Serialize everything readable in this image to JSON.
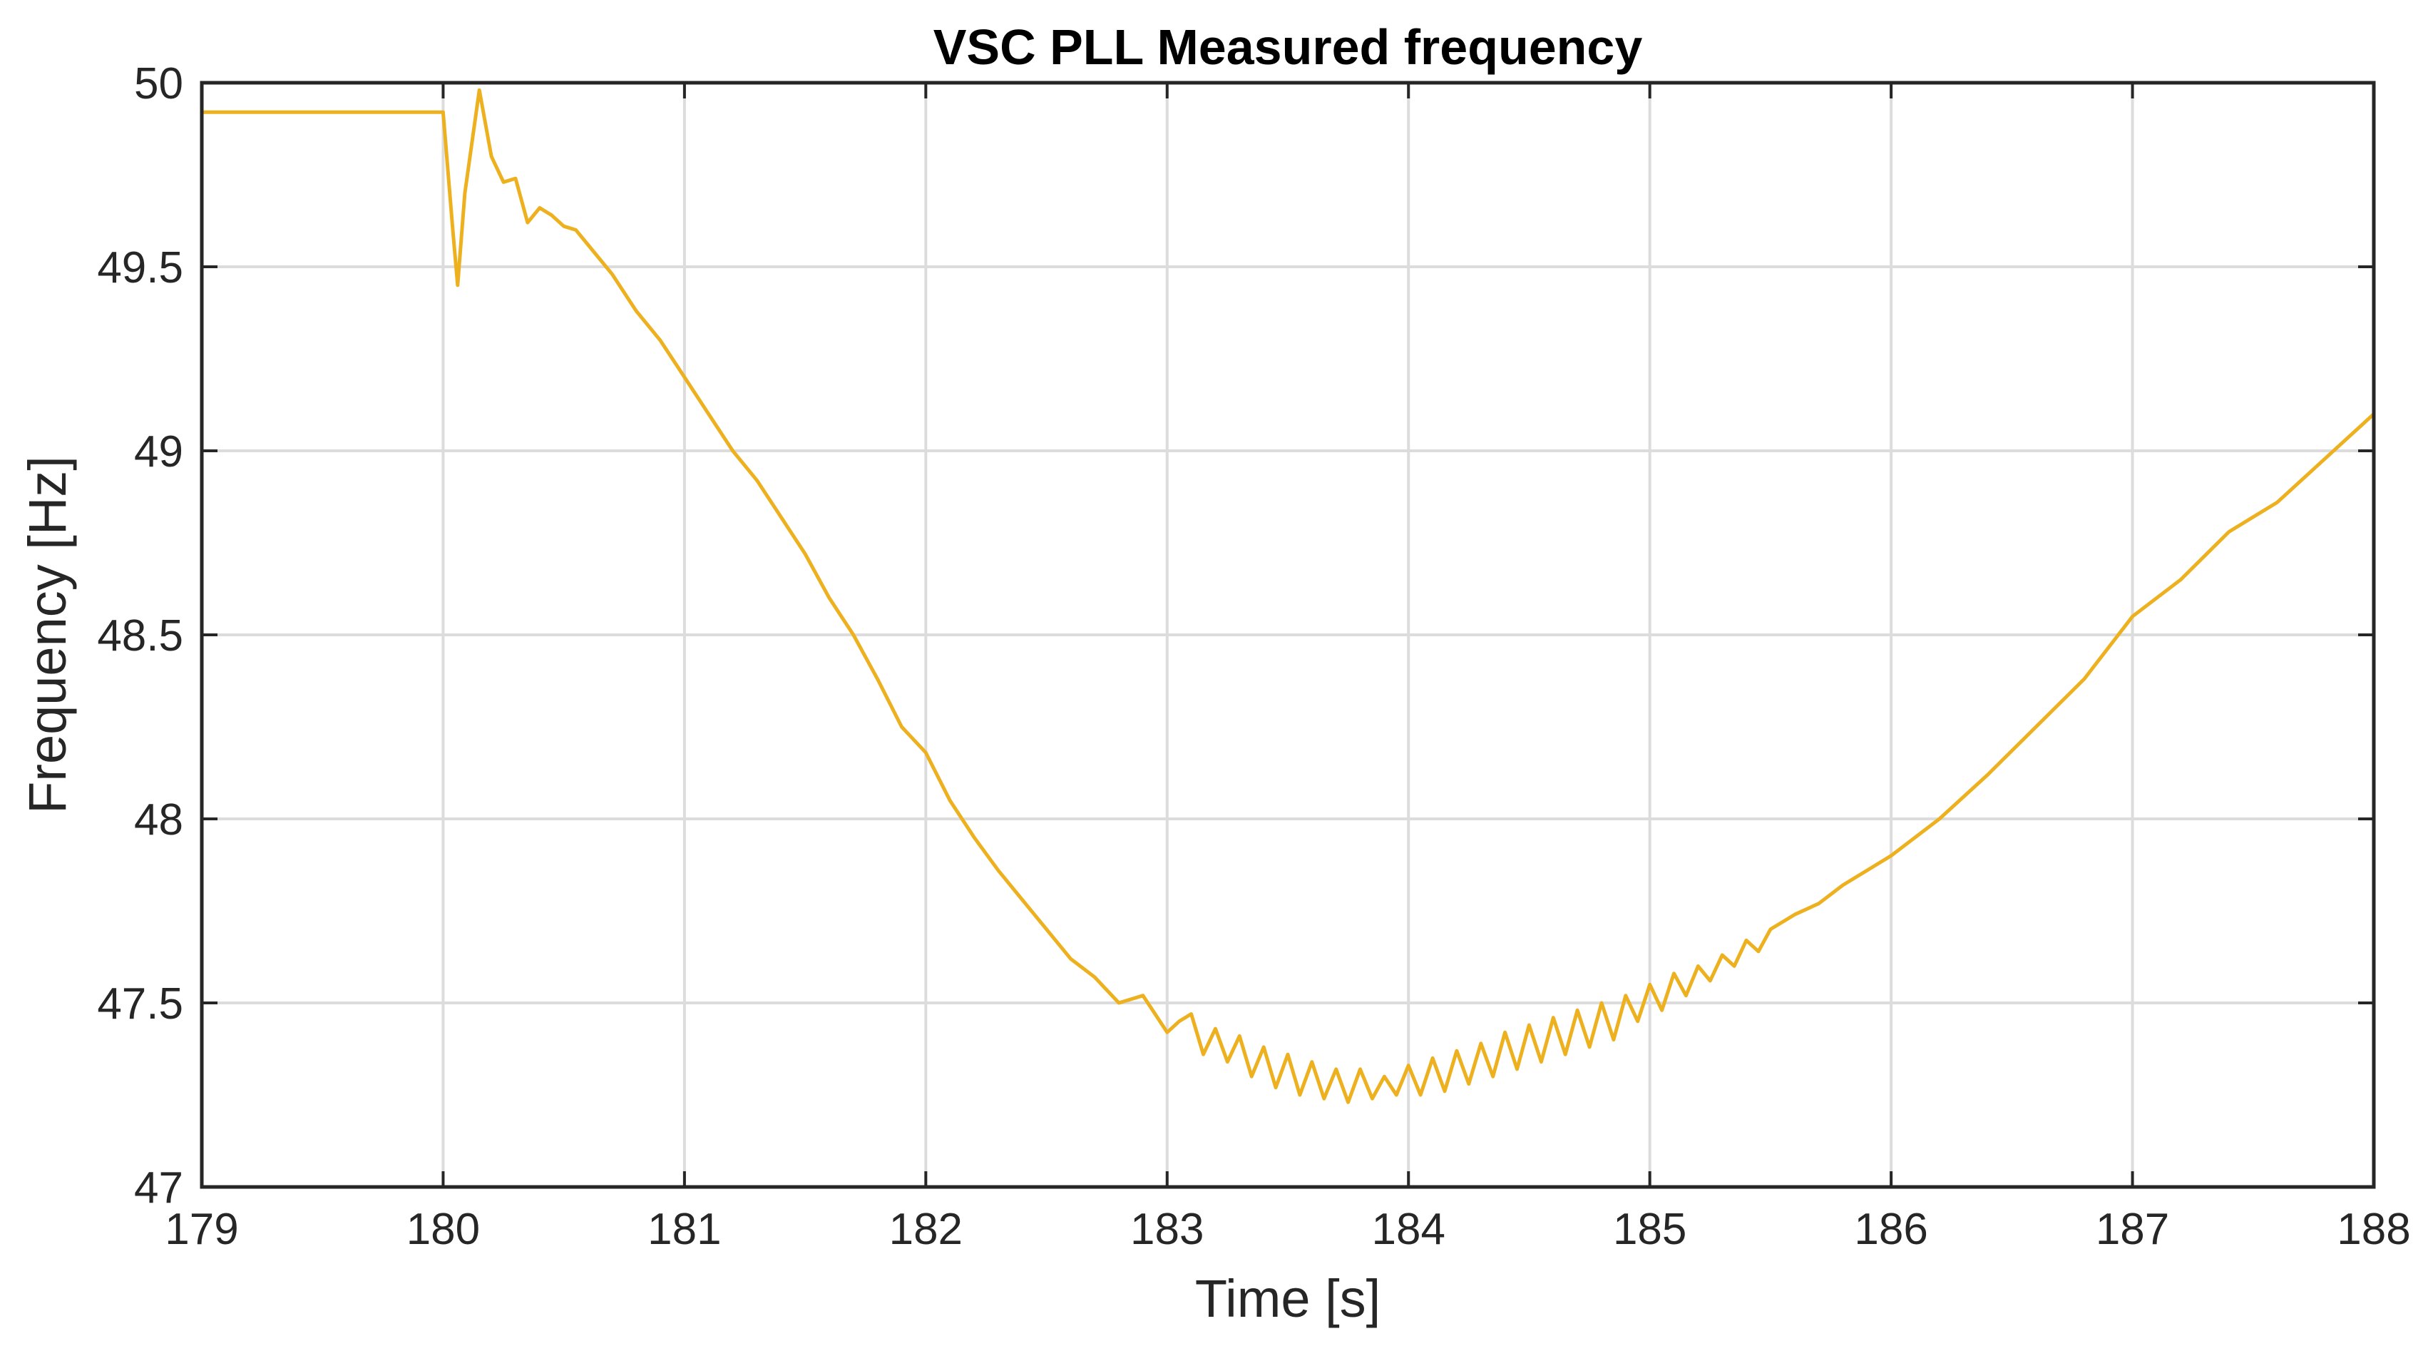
{
  "colors": {
    "series": "#EDB120",
    "grid": "#DCDCDC",
    "axis": "#262626"
  },
  "chart_data": {
    "type": "line",
    "title": "VSC PLL Measured frequency",
    "xlabel": "Time [s]",
    "ylabel": "Frequency [Hz]",
    "xlim": [
      179,
      188
    ],
    "ylim": [
      47,
      50
    ],
    "grid": true,
    "x_ticks": [
      179,
      180,
      181,
      182,
      183,
      184,
      185,
      186,
      187,
      188
    ],
    "x_tick_labels": [
      "179",
      "180",
      "181",
      "182",
      "183",
      "184",
      "185",
      "186",
      "187",
      "188"
    ],
    "y_ticks": [
      47,
      47.5,
      48,
      48.5,
      49,
      49.5,
      50
    ],
    "y_tick_labels": [
      "47",
      "47.5",
      "48",
      "48.5",
      "49",
      "49.5",
      "50"
    ],
    "series": [
      {
        "x": [
          179.0,
          180.0,
          180.04,
          180.06,
          180.09,
          180.15,
          180.2,
          180.25,
          180.3,
          180.35,
          180.4,
          180.45,
          180.5,
          180.55,
          180.6,
          180.7,
          180.8,
          180.9,
          181.0,
          181.1,
          181.2,
          181.3,
          181.4,
          181.5,
          181.6,
          181.7,
          181.8,
          181.9,
          182.0,
          182.1,
          182.2,
          182.3,
          182.4,
          182.5,
          182.6,
          182.7,
          182.8,
          182.9,
          183.0,
          183.05,
          183.1,
          183.15,
          183.2,
          183.25,
          183.3,
          183.35,
          183.4,
          183.45,
          183.5,
          183.55,
          183.6,
          183.65,
          183.7,
          183.75,
          183.8,
          183.85,
          183.9,
          183.95,
          184.0,
          184.05,
          184.1,
          184.15,
          184.2,
          184.25,
          184.3,
          184.35,
          184.4,
          184.45,
          184.5,
          184.55,
          184.6,
          184.65,
          184.7,
          184.75,
          184.8,
          184.85,
          184.9,
          184.95,
          185.0,
          185.05,
          185.1,
          185.15,
          185.2,
          185.25,
          185.3,
          185.35,
          185.4,
          185.45,
          185.5,
          185.6,
          185.7,
          185.8,
          185.9,
          186.0,
          186.2,
          186.4,
          186.6,
          186.8,
          187.0,
          187.2,
          187.4,
          187.6,
          187.8,
          188.0
        ],
        "y": [
          49.92,
          49.92,
          49.6,
          49.45,
          49.7,
          49.98,
          49.8,
          49.73,
          49.74,
          49.62,
          49.66,
          49.64,
          49.61,
          49.6,
          49.56,
          49.48,
          49.38,
          49.3,
          49.2,
          49.1,
          49.0,
          48.92,
          48.82,
          48.72,
          48.6,
          48.5,
          48.38,
          48.25,
          48.18,
          48.05,
          47.95,
          47.86,
          47.78,
          47.7,
          47.62,
          47.57,
          47.5,
          47.52,
          47.42,
          47.45,
          47.47,
          47.36,
          47.43,
          47.34,
          47.41,
          47.3,
          47.38,
          47.27,
          47.36,
          47.25,
          47.34,
          47.24,
          47.32,
          47.23,
          47.32,
          47.24,
          47.3,
          47.25,
          47.33,
          47.25,
          47.35,
          47.26,
          47.37,
          47.28,
          47.39,
          47.3,
          47.42,
          47.32,
          47.44,
          47.34,
          47.46,
          47.36,
          47.48,
          47.38,
          47.5,
          47.4,
          47.52,
          47.45,
          47.55,
          47.48,
          47.58,
          47.52,
          47.6,
          47.56,
          47.63,
          47.6,
          47.67,
          47.64,
          47.7,
          47.74,
          47.77,
          47.82,
          47.86,
          47.9,
          48.0,
          48.12,
          48.25,
          48.38,
          48.55,
          48.65,
          48.78,
          48.86,
          48.98,
          49.1
        ],
        "color": "#EDB120"
      }
    ]
  }
}
